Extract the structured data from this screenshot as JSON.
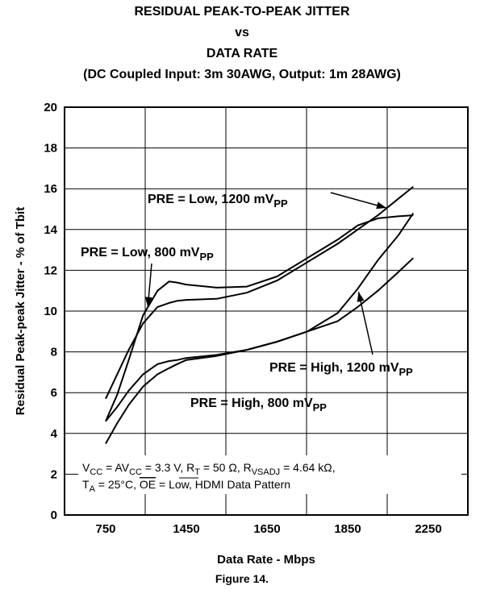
{
  "chart_data": {
    "type": "line",
    "title_lines": [
      "RESIDUAL PEAK-TO-PEAK JITTER",
      "vs",
      "DATA RATE",
      "(DC Coupled Input: 3m 30AWG, Output: 1m 28AWG)"
    ],
    "xlabel": "Data Rate - Mbps",
    "ylabel": "Residual Peak-peak Jitter - % of Tbit",
    "x_tick_labels": [
      "750",
      "1450",
      "1650",
      "1850",
      "2250"
    ],
    "y_ticks": [
      0,
      2,
      4,
      6,
      8,
      10,
      12,
      14,
      16,
      18,
      20
    ],
    "ylim": [
      0,
      20
    ],
    "grid": true,
    "series": [
      {
        "name": "PRE = Low, 800 mVPP",
        "x": [
          750,
          850,
          950,
          1075,
          1200,
          1300,
          1370,
          1450,
          1525,
          1600,
          1675,
          1750,
          1825,
          1900,
          2000,
          2100,
          2175
        ],
        "y": [
          4.6,
          5.9,
          7.6,
          9.8,
          11.0,
          11.45,
          11.4,
          11.3,
          11.15,
          11.2,
          11.7,
          12.6,
          13.5,
          14.2,
          14.55,
          14.65,
          14.7
        ]
      },
      {
        "name": "PRE = Low, 1200 mVPP",
        "x": [
          750,
          850,
          950,
          1075,
          1200,
          1300,
          1370,
          1450,
          1525,
          1600,
          1675,
          1750,
          1825,
          1900,
          2000,
          2100,
          2175
        ],
        "y": [
          5.7,
          6.9,
          8.1,
          9.4,
          10.2,
          10.4,
          10.5,
          10.55,
          10.6,
          10.9,
          11.5,
          12.4,
          13.3,
          14.0,
          14.7,
          15.5,
          16.1
        ]
      },
      {
        "name": "PRE = High, 800 mVPP",
        "x": [
          750,
          850,
          950,
          1075,
          1200,
          1300,
          1370,
          1450,
          1525,
          1600,
          1675,
          1750,
          1825,
          1900,
          2000,
          2100,
          2175
        ],
        "y": [
          3.5,
          4.5,
          5.4,
          6.3,
          6.9,
          7.2,
          7.4,
          7.6,
          7.8,
          8.1,
          8.5,
          9.0,
          9.5,
          10.2,
          11.0,
          11.9,
          12.6
        ]
      },
      {
        "name": "PRE = High, 1200 mVPP",
        "x": [
          750,
          850,
          950,
          1075,
          1200,
          1300,
          1370,
          1450,
          1525,
          1600,
          1675,
          1750,
          1825,
          1900,
          2000,
          2100,
          2175
        ],
        "y": [
          4.6,
          5.3,
          6.1,
          6.9,
          7.4,
          7.55,
          7.6,
          7.7,
          7.85,
          8.1,
          8.5,
          9.0,
          9.9,
          11.1,
          12.5,
          13.7,
          14.8
        ]
      }
    ],
    "annotations": [
      {
        "main": "PRE = Low, 1200 mV",
        "sub": "PP"
      },
      {
        "main": "PRE = Low, 800 mV",
        "sub": "PP"
      },
      {
        "main": "PRE = High, 1200 mV",
        "sub": "PP"
      },
      {
        "main": "PRE = High, 800 mV",
        "sub": "PP"
      }
    ],
    "conditions": {
      "line1": [
        "V",
        "CC",
        " = AV",
        "CC",
        " = 3.3 V, R",
        "T",
        " = 50 Ω, R",
        "VSADJ",
        " = 4.64 kΩ,"
      ],
      "line2": [
        "T",
        "A",
        " = 25°C, ",
        "OE",
        " = Low, HDMI Data Pattern"
      ]
    }
  },
  "figure_caption": "Figure 14."
}
